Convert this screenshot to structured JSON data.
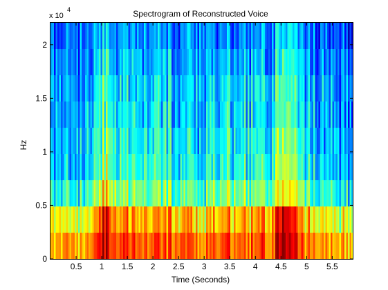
{
  "chart_data": {
    "type": "heatmap",
    "title": "Spectrogram of Reconstructed Voice",
    "xlabel": "Time (Seconds)",
    "ylabel": "Hz",
    "exponent_label": "x 10",
    "exponent_power": "4",
    "xlim": [
      0,
      5.9
    ],
    "ylim": [
      0,
      22050
    ],
    "x_ticks": [
      0.5,
      1,
      1.5,
      2,
      2.5,
      3,
      3.5,
      4,
      4.5,
      5,
      5.5
    ],
    "x_tick_labels": [
      "0.5",
      "1",
      "1.5",
      "2",
      "2.5",
      "3",
      "3.5",
      "4",
      "4.5",
      "5",
      "5.5"
    ],
    "y_ticks": [
      0,
      5000,
      10000,
      15000,
      20000
    ],
    "y_tick_labels": [
      "0",
      "0.5",
      "1",
      "1.5",
      "2"
    ],
    "band_count": 9,
    "band_height_hz": 2450,
    "colormap": "jet",
    "grid": false,
    "legend": "none",
    "intensity_profile": [
      {
        "t": 0.0,
        "v": 0.3
      },
      {
        "t": 0.3,
        "v": 0.38
      },
      {
        "t": 0.5,
        "v": 0.32
      },
      {
        "t": 0.75,
        "v": 0.4
      },
      {
        "t": 0.95,
        "v": 0.62
      },
      {
        "t": 1.05,
        "v": 0.92
      },
      {
        "t": 1.2,
        "v": 0.55
      },
      {
        "t": 1.5,
        "v": 0.6
      },
      {
        "t": 1.8,
        "v": 0.52
      },
      {
        "t": 2.1,
        "v": 0.5
      },
      {
        "t": 2.4,
        "v": 0.55
      },
      {
        "t": 2.7,
        "v": 0.5
      },
      {
        "t": 2.95,
        "v": 0.3
      },
      {
        "t": 3.2,
        "v": 0.55
      },
      {
        "t": 3.5,
        "v": 0.58
      },
      {
        "t": 3.8,
        "v": 0.52
      },
      {
        "t": 4.1,
        "v": 0.55
      },
      {
        "t": 4.35,
        "v": 0.6
      },
      {
        "t": 4.55,
        "v": 0.95
      },
      {
        "t": 4.7,
        "v": 0.65
      },
      {
        "t": 4.9,
        "v": 0.58
      },
      {
        "t": 5.1,
        "v": 0.45
      },
      {
        "t": 5.4,
        "v": 0.35
      },
      {
        "t": 5.9,
        "v": 0.25
      }
    ],
    "band_level": [
      0.98,
      0.66,
      0.45,
      0.36,
      0.34,
      0.31,
      0.3,
      0.27,
      0.24
    ]
  }
}
